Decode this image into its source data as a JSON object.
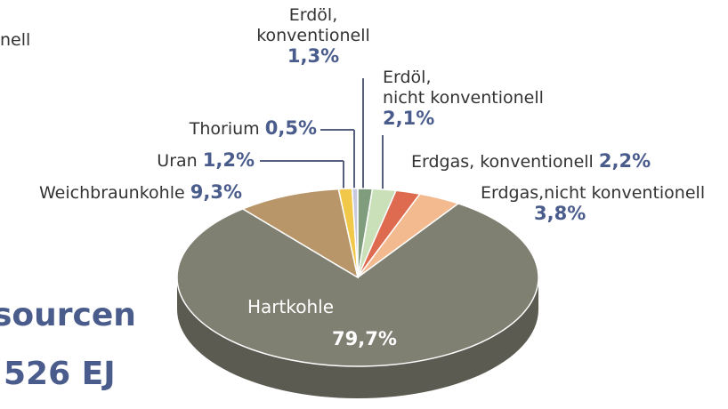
{
  "chart_data": {
    "type": "pie",
    "categories": [
      "Erdöl,\nkonventionell",
      "Erdöl,\nnicht konventionell",
      "Erdgas, konventionell",
      "Erdgas,nicht konventionell",
      "Hartkohle",
      "Weichbraunkohle",
      "Uran",
      "Thorium"
    ],
    "values": [
      1.3,
      2.1,
      2.2,
      3.8,
      79.7,
      9.3,
      1.2,
      0.5
    ],
    "value_labels": [
      "1,3%",
      "2,1%",
      "2,2%",
      "3,8%",
      "79,7%",
      "9,3%",
      "1,2%",
      "0,5%"
    ],
    "colors": [
      "#7f9d7c",
      "#c9e0b9",
      "#de6a50",
      "#f3b98f",
      "#7f7f72",
      "#b8966a",
      "#f2c84b",
      "#c8c8de"
    ],
    "annotations": [
      "nell",
      "sourcen",
      "526 EJ"
    ]
  }
}
